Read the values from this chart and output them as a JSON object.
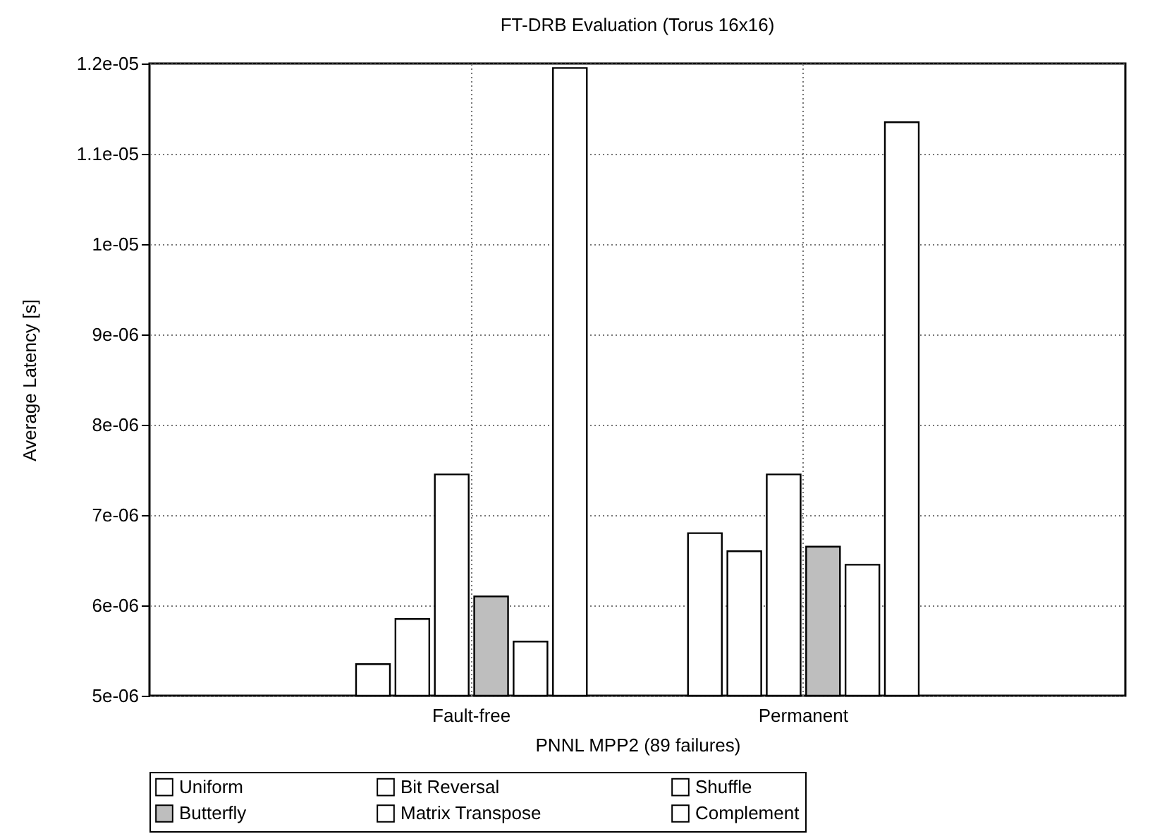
{
  "chart_data": {
    "type": "bar",
    "title": "FT-DRB Evaluation (Torus 16x16)",
    "xlabel": "PNNL MPP2 (89 failures)",
    "ylabel": "Average Latency [s]",
    "categories": [
      "Fault-free",
      "Permanent"
    ],
    "series": [
      {
        "name": "Uniform",
        "color": "#ffffff",
        "values": [
          5.35e-06,
          6.8e-06
        ]
      },
      {
        "name": "Bit Reversal",
        "color": "#ffffff",
        "values": [
          5.85e-06,
          6.6e-06
        ]
      },
      {
        "name": "Shuffle",
        "color": "#ffffff",
        "values": [
          7.45e-06,
          7.45e-06
        ]
      },
      {
        "name": "Butterfly",
        "color": "#bebebe",
        "values": [
          6.1e-06,
          6.65e-06
        ]
      },
      {
        "name": "Matrix Transpose",
        "color": "#ffffff",
        "values": [
          5.6e-06,
          6.45e-06
        ]
      },
      {
        "name": "Complement",
        "color": "#ffffff",
        "values": [
          1.195e-05,
          1.135e-05
        ]
      }
    ],
    "ylim": [
      5e-06,
      1.2e-05
    ],
    "yticks": [
      {
        "value": 5e-06,
        "label": "5e-06"
      },
      {
        "value": 6e-06,
        "label": "6e-06"
      },
      {
        "value": 7e-06,
        "label": "7e-06"
      },
      {
        "value": 8e-06,
        "label": "8e-06"
      },
      {
        "value": 9e-06,
        "label": "9e-06"
      },
      {
        "value": 1e-05,
        "label": "1e-05"
      },
      {
        "value": 1.1e-05,
        "label": "1.1e-05"
      },
      {
        "value": 1.2e-05,
        "label": "1.2e-05"
      }
    ],
    "grid": true,
    "legend": "bottom"
  }
}
